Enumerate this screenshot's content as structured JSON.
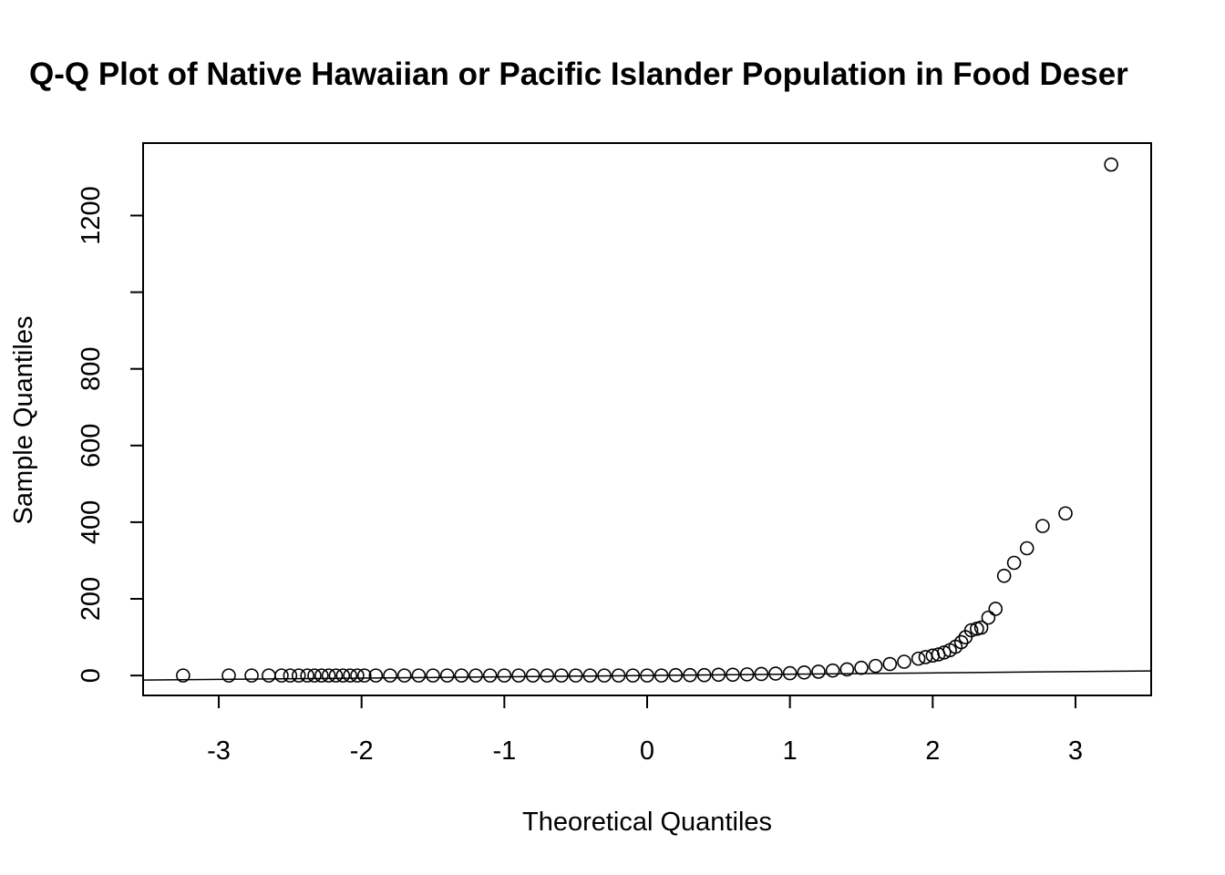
{
  "chart_data": {
    "type": "scatter",
    "title": "Q-Q Plot of Native Hawaiian or Pacific Islander Population in Food Deser",
    "xlabel": "Theoretical Quantiles",
    "ylabel": "Sample Quantiles",
    "xlim": [
      -3.53,
      3.53
    ],
    "ylim": [
      -52,
      1389
    ],
    "x_ticks": [
      -3,
      -2,
      -1,
      0,
      1,
      2,
      3
    ],
    "x_tick_labels": [
      "-3",
      "-2",
      "-1",
      "0",
      "1",
      "2",
      "3"
    ],
    "y_ticks": [
      0,
      200,
      400,
      600,
      800,
      1000,
      1200
    ],
    "y_tick_labels": [
      "0",
      "200",
      "400",
      "600",
      "800",
      "",
      "1200"
    ],
    "grid": false,
    "legend": "none",
    "marker": "open-circle",
    "reference_line": {
      "slope": 3.4,
      "intercept": 0
    },
    "series": [
      {
        "points": [
          [
            -3.25,
            0
          ],
          [
            -2.93,
            0
          ],
          [
            -2.77,
            0
          ],
          [
            -2.65,
            0
          ],
          [
            -2.56,
            0
          ],
          [
            -2.5,
            0
          ],
          [
            -2.44,
            0
          ],
          [
            -2.38,
            0
          ],
          [
            -2.33,
            0
          ],
          [
            -2.28,
            0
          ],
          [
            -2.23,
            0
          ],
          [
            -2.18,
            0
          ],
          [
            -2.13,
            0
          ],
          [
            -2.08,
            0
          ],
          [
            -2.03,
            0
          ],
          [
            -1.98,
            0
          ],
          [
            -1.9,
            0
          ],
          [
            -1.8,
            0
          ],
          [
            -1.7,
            0
          ],
          [
            -1.6,
            0
          ],
          [
            -1.5,
            0
          ],
          [
            -1.4,
            0
          ],
          [
            -1.3,
            0
          ],
          [
            -1.2,
            0
          ],
          [
            -1.1,
            0
          ],
          [
            -1.0,
            0
          ],
          [
            -0.9,
            0
          ],
          [
            -0.8,
            0
          ],
          [
            -0.7,
            0
          ],
          [
            -0.6,
            0
          ],
          [
            -0.5,
            0
          ],
          [
            -0.4,
            0
          ],
          [
            -0.3,
            0
          ],
          [
            -0.2,
            0
          ],
          [
            -0.1,
            0
          ],
          [
            0.0,
            0
          ],
          [
            0.1,
            0
          ],
          [
            0.2,
            1
          ],
          [
            0.3,
            1
          ],
          [
            0.4,
            1
          ],
          [
            0.5,
            2
          ],
          [
            0.6,
            2
          ],
          [
            0.7,
            3
          ],
          [
            0.8,
            4
          ],
          [
            0.9,
            5
          ],
          [
            1.0,
            6
          ],
          [
            1.1,
            8
          ],
          [
            1.2,
            10
          ],
          [
            1.3,
            13
          ],
          [
            1.4,
            16
          ],
          [
            1.5,
            20
          ],
          [
            1.6,
            25
          ],
          [
            1.7,
            30
          ],
          [
            1.8,
            36
          ],
          [
            1.9,
            44
          ],
          [
            1.95,
            48
          ],
          [
            2.0,
            52
          ],
          [
            2.04,
            55
          ],
          [
            2.08,
            60
          ],
          [
            2.12,
            66
          ],
          [
            2.16,
            75
          ],
          [
            2.2,
            87
          ],
          [
            2.23,
            100
          ],
          [
            2.27,
            118
          ],
          [
            2.31,
            122
          ],
          [
            2.34,
            125
          ],
          [
            2.39,
            151
          ],
          [
            2.44,
            174
          ],
          [
            2.5,
            260
          ],
          [
            2.57,
            294
          ],
          [
            2.66,
            332
          ],
          [
            2.77,
            390
          ],
          [
            2.93,
            423
          ],
          [
            3.25,
            1333
          ]
        ]
      }
    ]
  }
}
